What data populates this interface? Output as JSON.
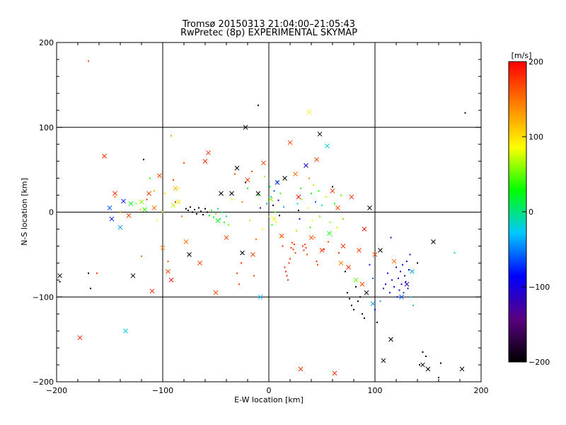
{
  "title_line1": "Tromsø 20150313 21:04:00–21:05:43",
  "title_line2": "RwPretec (8p) EXPERIMENTAL SKYMAP",
  "chart_data": {
    "type": "scatter",
    "xlabel": "E-W location [km]",
    "ylabel": "N-S location [km]",
    "xlim": [
      -200,
      200
    ],
    "ylim": [
      -200,
      200
    ],
    "xticks": [
      "−200",
      "−100",
      "0",
      "100",
      "200"
    ],
    "yticks": [
      "−200",
      "−100",
      "0",
      "100",
      "200"
    ],
    "grid": true,
    "colorbar": {
      "label": "[m/s]",
      "range": [
        -200,
        200
      ],
      "ticks": [
        "200",
        "100",
        "0",
        "−100",
        "−200"
      ],
      "colors": [
        "#000000",
        "#5a0080",
        "#0000ff",
        "#00c8ff",
        "#00ff00",
        "#ffff00",
        "#ff8000",
        "#ff0000"
      ]
    },
    "crosses": [
      [
        -155,
        66,
        180
      ],
      [
        -150,
        5,
        -60
      ],
      [
        -145,
        22,
        180
      ],
      [
        -140,
        -18,
        -40
      ],
      [
        -137,
        13,
        -80
      ],
      [
        -132,
        -4,
        170
      ],
      [
        -130,
        10,
        20
      ],
      [
        -128,
        -75,
        -200
      ],
      [
        -120,
        12,
        60
      ],
      [
        -117,
        3,
        40
      ],
      [
        -113,
        22,
        170
      ],
      [
        -110,
        -93,
        180
      ],
      [
        -108,
        5,
        150
      ],
      [
        -103,
        43,
        170
      ],
      [
        -100,
        -42,
        140
      ],
      [
        -95,
        -70,
        170
      ],
      [
        -92,
        -80,
        200
      ],
      [
        -90,
        8,
        70
      ],
      [
        -88,
        28,
        120
      ],
      [
        -85,
        12,
        90
      ],
      [
        -78,
        -35,
        150
      ],
      [
        -75,
        -50,
        -200
      ],
      [
        -65,
        -60,
        170
      ],
      [
        -60,
        60,
        180
      ],
      [
        -57,
        70,
        180
      ],
      [
        -50,
        -95,
        170
      ],
      [
        -48,
        -10,
        20
      ],
      [
        -45,
        22,
        -200
      ],
      [
        -40,
        -30,
        170
      ],
      [
        -35,
        22,
        -200
      ],
      [
        -30,
        52,
        -200
      ],
      [
        -25,
        -48,
        -200
      ],
      [
        -22,
        100,
        -200
      ],
      [
        -20,
        38,
        170
      ],
      [
        -15,
        -50,
        170
      ],
      [
        -10,
        22,
        -200
      ],
      [
        -8,
        -100,
        -30
      ],
      [
        -5,
        58,
        170
      ],
      [
        2,
        15,
        60
      ],
      [
        5,
        -8,
        80
      ],
      [
        8,
        35,
        -80
      ],
      [
        12,
        -28,
        170
      ],
      [
        15,
        40,
        -200
      ],
      [
        20,
        82,
        170
      ],
      [
        25,
        45,
        150
      ],
      [
        28,
        18,
        200
      ],
      [
        30,
        -185,
        180
      ],
      [
        35,
        55,
        -100
      ],
      [
        38,
        118,
        90
      ],
      [
        40,
        -30,
        170
      ],
      [
        45,
        62,
        170
      ],
      [
        48,
        92,
        -200
      ],
      [
        50,
        -45,
        180
      ],
      [
        55,
        78,
        -20
      ],
      [
        57,
        -25,
        30
      ],
      [
        60,
        25,
        180
      ],
      [
        62,
        -190,
        180
      ],
      [
        65,
        5,
        170
      ],
      [
        68,
        -60,
        140
      ],
      [
        70,
        -40,
        180
      ],
      [
        75,
        -65,
        180
      ],
      [
        78,
        18,
        180
      ],
      [
        82,
        -80,
        50
      ],
      [
        85,
        -45,
        170
      ],
      [
        88,
        -85,
        170
      ],
      [
        90,
        -20,
        200
      ],
      [
        92,
        -95,
        -200
      ],
      [
        95,
        5,
        -200
      ],
      [
        98,
        -108,
        -40
      ],
      [
        100,
        -50,
        170
      ],
      [
        105,
        -45,
        -200
      ],
      [
        108,
        -175,
        -200
      ],
      [
        115,
        -150,
        -200
      ],
      [
        118,
        -58,
        150
      ],
      [
        125,
        -100,
        -60
      ],
      [
        130,
        -85,
        -120
      ],
      [
        135,
        -70,
        -40
      ],
      [
        145,
        -180,
        -200
      ],
      [
        150,
        -185,
        -200
      ],
      [
        155,
        -35,
        -200
      ],
      [
        182,
        -185,
        -200
      ],
      [
        -178,
        -148,
        180
      ],
      [
        -135,
        -140,
        -20
      ],
      [
        -197,
        -75,
        -200
      ],
      [
        -148,
        -8,
        -80
      ]
    ],
    "dots": [
      [
        -197,
        -82,
        -200
      ],
      [
        -170,
        -72,
        -200
      ],
      [
        -168,
        -90,
        -200
      ],
      [
        -162,
        -72,
        180
      ],
      [
        -145,
        18,
        150
      ],
      [
        -140,
        0,
        140
      ],
      [
        -125,
        10,
        60
      ],
      [
        -121,
        3,
        120
      ],
      [
        -118,
        62,
        -200
      ],
      [
        -115,
        15,
        180
      ],
      [
        -112,
        40,
        40
      ],
      [
        -108,
        25,
        120
      ],
      [
        -105,
        -10,
        90
      ],
      [
        -100,
        0,
        70
      ],
      [
        -98,
        22,
        110
      ],
      [
        -95,
        -58,
        170
      ],
      [
        -92,
        90,
        130
      ],
      [
        -90,
        38,
        170
      ],
      [
        -88,
        12,
        180
      ],
      [
        -85,
        28,
        80
      ],
      [
        -82,
        -5,
        150
      ],
      [
        -80,
        58,
        170
      ],
      [
        -78,
        4,
        -200
      ],
      [
        -76,
        2,
        -200
      ],
      [
        -74,
        6,
        -200
      ],
      [
        -72,
        0,
        -200
      ],
      [
        -70,
        3,
        -200
      ],
      [
        -68,
        -2,
        -200
      ],
      [
        -66,
        5,
        -200
      ],
      [
        -64,
        1,
        -200
      ],
      [
        -62,
        -3,
        -200
      ],
      [
        -60,
        4,
        -200
      ],
      [
        -58,
        0,
        -200
      ],
      [
        -56,
        -4,
        30
      ],
      [
        -54,
        2,
        40
      ],
      [
        -52,
        -6,
        20
      ],
      [
        -50,
        -2,
        50
      ],
      [
        -48,
        4,
        -10
      ],
      [
        -46,
        -8,
        20
      ],
      [
        -44,
        0,
        10
      ],
      [
        -42,
        -12,
        40
      ],
      [
        -40,
        -5,
        0
      ],
      [
        -38,
        -15,
        50
      ],
      [
        -35,
        15,
        90
      ],
      [
        -32,
        45,
        170
      ],
      [
        -30,
        -72,
        170
      ],
      [
        -28,
        -85,
        170
      ],
      [
        -26,
        -60,
        180
      ],
      [
        -25,
        12,
        140
      ],
      [
        -22,
        35,
        -200
      ],
      [
        -20,
        28,
        20
      ],
      [
        -18,
        -10,
        60
      ],
      [
        -16,
        48,
        170
      ],
      [
        -14,
        -75,
        170
      ],
      [
        -12,
        -32,
        150
      ],
      [
        -10,
        20,
        30
      ],
      [
        -8,
        5,
        -100
      ],
      [
        -6,
        -20,
        80
      ],
      [
        -4,
        42,
        60
      ],
      [
        -2,
        10,
        -40
      ],
      [
        0,
        -5,
        60
      ],
      [
        1,
        30,
        20
      ],
      [
        2,
        18,
        -20
      ],
      [
        3,
        -15,
        30
      ],
      [
        4,
        8,
        -200
      ],
      [
        5,
        25,
        -60
      ],
      [
        6,
        0,
        50
      ],
      [
        7,
        -12,
        80
      ],
      [
        8,
        36,
        10
      ],
      [
        9,
        14,
        -100
      ],
      [
        10,
        -4,
        -200
      ],
      [
        11,
        22,
        40
      ],
      [
        12,
        -30,
        90
      ],
      [
        13,
        -40,
        180
      ],
      [
        14,
        6,
        -40
      ],
      [
        15,
        -65,
        180
      ],
      [
        16,
        -70,
        180
      ],
      [
        17,
        -75,
        180
      ],
      [
        18,
        -80,
        180
      ],
      [
        19,
        -60,
        180
      ],
      [
        20,
        -55,
        170
      ],
      [
        21,
        -42,
        180
      ],
      [
        22,
        -36,
        180
      ],
      [
        23,
        -44,
        180
      ],
      [
        24,
        -38,
        180
      ],
      [
        25,
        -48,
        170
      ],
      [
        26,
        -22,
        60
      ],
      [
        27,
        10,
        -20
      ],
      [
        28,
        2,
        -200
      ],
      [
        29,
        -8,
        -100
      ],
      [
        30,
        28,
        30
      ],
      [
        31,
        15,
        60
      ],
      [
        32,
        -40,
        180
      ],
      [
        33,
        -45,
        180
      ],
      [
        34,
        -38,
        170
      ],
      [
        35,
        -42,
        180
      ],
      [
        36,
        -50,
        170
      ],
      [
        37,
        5,
        90
      ],
      [
        38,
        40,
        140
      ],
      [
        39,
        -18,
        40
      ],
      [
        40,
        22,
        20
      ],
      [
        41,
        -10,
        80
      ],
      [
        42,
        32,
        70
      ],
      [
        43,
        -30,
        150
      ],
      [
        44,
        12,
        -60
      ],
      [
        45,
        -58,
        180
      ],
      [
        46,
        -62,
        170
      ],
      [
        47,
        25,
        30
      ],
      [
        48,
        -5,
        50
      ],
      [
        50,
        8,
        -20
      ],
      [
        52,
        -44,
        180
      ],
      [
        54,
        18,
        70
      ],
      [
        56,
        -35,
        170
      ],
      [
        58,
        -12,
        60
      ],
      [
        60,
        30,
        -200
      ],
      [
        62,
        10,
        30
      ],
      [
        64,
        -18,
        80
      ],
      [
        66,
        -48,
        180
      ],
      [
        68,
        20,
        50
      ],
      [
        70,
        -8,
        120
      ],
      [
        72,
        -70,
        -200
      ],
      [
        74,
        -95,
        -200
      ],
      [
        76,
        -102,
        -200
      ],
      [
        78,
        -110,
        -200
      ],
      [
        80,
        -115,
        -200
      ],
      [
        82,
        -88,
        -200
      ],
      [
        84,
        -105,
        -200
      ],
      [
        86,
        -100,
        -200
      ],
      [
        88,
        -120,
        -200
      ],
      [
        90,
        -125,
        -200
      ],
      [
        95,
        -62,
        -80
      ],
      [
        98,
        -78,
        -60
      ],
      [
        100,
        -115,
        -80
      ],
      [
        102,
        -130,
        -200
      ],
      [
        105,
        -105,
        -40
      ],
      [
        108,
        -90,
        -100
      ],
      [
        110,
        -85,
        -90
      ],
      [
        112,
        -72,
        -100
      ],
      [
        114,
        -95,
        -80
      ],
      [
        116,
        -80,
        -100
      ],
      [
        118,
        -88,
        -110
      ],
      [
        120,
        -65,
        -100
      ],
      [
        121,
        -100,
        -80
      ],
      [
        122,
        -78,
        -100
      ],
      [
        123,
        -92,
        -90
      ],
      [
        124,
        -70,
        -110
      ],
      [
        125,
        -85,
        -100
      ],
      [
        126,
        -62,
        -90
      ],
      [
        127,
        -95,
        -70
      ],
      [
        128,
        -75,
        -110
      ],
      [
        129,
        -82,
        -100
      ],
      [
        130,
        -58,
        -90
      ],
      [
        131,
        -90,
        -80
      ],
      [
        132,
        -68,
        -100
      ],
      [
        133,
        -50,
        -100
      ],
      [
        134,
        -100,
        -30
      ],
      [
        136,
        -110,
        -20
      ],
      [
        140,
        -60,
        -200
      ],
      [
        142,
        -180,
        -200
      ],
      [
        145,
        -165,
        -200
      ],
      [
        148,
        -170,
        -200
      ],
      [
        150,
        -185,
        -200
      ],
      [
        160,
        -195,
        -200
      ],
      [
        162,
        -178,
        -200
      ],
      [
        175,
        -48,
        0
      ],
      [
        185,
        117,
        -200
      ],
      [
        115,
        -30,
        -100
      ],
      [
        -170,
        178,
        170
      ],
      [
        -10,
        126,
        -200
      ],
      [
        -120,
        -52,
        150
      ]
    ]
  }
}
